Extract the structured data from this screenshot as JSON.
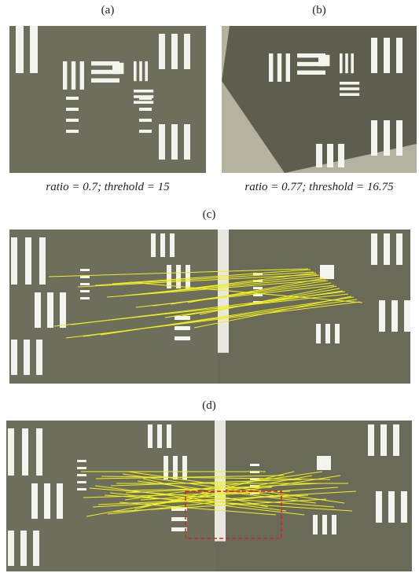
{
  "panels": [
    {
      "label": "(a)",
      "caption": "ratio = 0.7; threhold = 15"
    },
    {
      "label": "(b)",
      "caption": "ratio = 0.77; threshold = 16.75"
    },
    {
      "label": "(c)"
    },
    {
      "label": "(d)"
    }
  ]
}
